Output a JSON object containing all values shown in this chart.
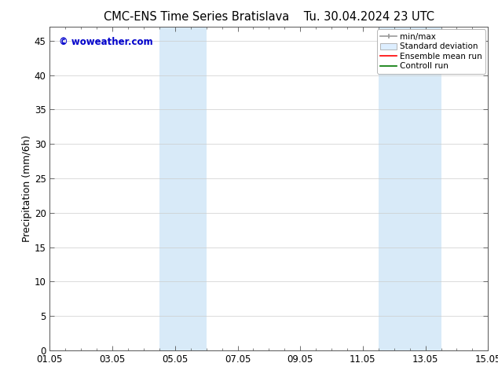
{
  "title_left": "CMC-ENS Time Series Bratislava",
  "title_right": "Tu. 30.04.2024 23 UTC",
  "ylabel": "Precipitation (mm/6h)",
  "ylim": [
    0,
    47
  ],
  "yticks": [
    0,
    5,
    10,
    15,
    20,
    25,
    30,
    35,
    40,
    45
  ],
  "xlim": [
    0,
    14
  ],
  "xtick_labels": [
    "01.05",
    "03.05",
    "05.05",
    "07.05",
    "09.05",
    "11.05",
    "13.05",
    "15.05"
  ],
  "xtick_positions": [
    0,
    2,
    4,
    6,
    8,
    10,
    12,
    14
  ],
  "shaded_regions": [
    {
      "xstart": 3.5,
      "xend": 5.0
    },
    {
      "xstart": 10.5,
      "xend": 12.5
    }
  ],
  "shade_color": "#d8eaf8",
  "watermark": "© woweather.com",
  "watermark_color": "#0000cc",
  "legend_labels": [
    "min/max",
    "Standard deviation",
    "Ensemble mean run",
    "Controll run"
  ],
  "legend_minmax_color": "#999999",
  "legend_std_color": "#cccccc",
  "legend_ens_color": "#ff0000",
  "legend_ctrl_color": "#007700",
  "bg_color": "#ffffff",
  "grid_color": "#cccccc",
  "spine_color": "#000000",
  "tick_label_fontsize": 8.5,
  "axis_label_fontsize": 9,
  "title_fontsize": 10.5,
  "watermark_fontsize": 8.5,
  "legend_fontsize": 7.5
}
